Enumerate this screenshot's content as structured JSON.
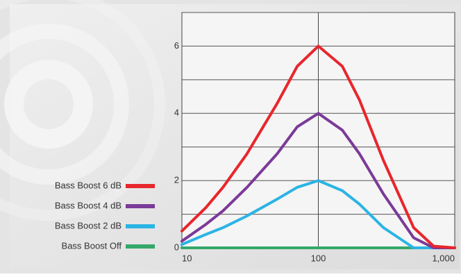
{
  "chart_data": {
    "type": "line",
    "xscale": "log",
    "x": [
      10,
      15,
      20,
      30,
      50,
      70,
      100,
      150,
      200,
      300,
      500,
      700,
      1000
    ],
    "series": [
      {
        "name": "Bass Boost 6 dB",
        "color": "#e8262c",
        "values": [
          0.5,
          1.2,
          1.8,
          2.8,
          4.3,
          5.4,
          6,
          5.4,
          4.4,
          2.6,
          0.6,
          0.05,
          0
        ]
      },
      {
        "name": "Bass Boost 4 dB",
        "color": "#7b3a98",
        "values": [
          0.2,
          0.7,
          1.1,
          1.8,
          2.8,
          3.6,
          4,
          3.5,
          2.8,
          1.6,
          0.3,
          0,
          0
        ]
      },
      {
        "name": "Bass Boost 2 dB",
        "color": "#2bb4e4",
        "values": [
          0.1,
          0.4,
          0.6,
          0.95,
          1.45,
          1.8,
          2,
          1.7,
          1.3,
          0.6,
          0,
          0,
          0
        ]
      },
      {
        "name": "Bass Boost Off",
        "color": "#35a86a",
        "values": [
          0,
          0,
          0,
          0,
          0,
          0,
          0,
          0,
          0,
          0,
          0,
          0,
          0
        ]
      }
    ],
    "xlim": [
      10,
      1000
    ],
    "xticks": [
      10,
      100,
      {
        "value": 1000,
        "label": "1,000"
      }
    ],
    "ylim": [
      0,
      7
    ],
    "yticks": [
      0,
      2,
      4,
      6
    ],
    "minor_yticks": [
      1,
      3,
      5,
      7
    ],
    "grid": true,
    "legend": "left"
  }
}
